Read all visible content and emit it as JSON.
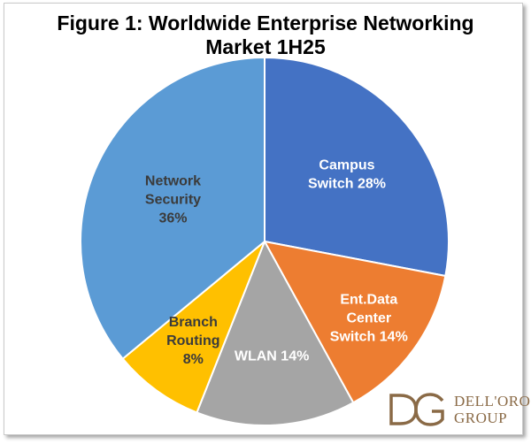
{
  "title_line1": "Figure 1: Worldwide Enterprise Networking",
  "title_line2": "Market 1H25",
  "chart_data": {
    "type": "pie",
    "title": "Figure 1: Worldwide Enterprise Networking Market 1H25",
    "start_angle_deg": 0,
    "direction": "clockwise",
    "legend": "none",
    "slices": [
      {
        "label": "Campus Switch",
        "value": 28,
        "display": [
          "Campus",
          "Switch 28%"
        ],
        "color": "#4472c4",
        "text_color": "#ffffff"
      },
      {
        "label": "Ent.Data Center Switch",
        "value": 14,
        "display": [
          "Ent.Data",
          "Center",
          "Switch 14%"
        ],
        "color": "#ed7d31",
        "text_color": "#ffffff"
      },
      {
        "label": "WLAN",
        "value": 14,
        "display": [
          "WLAN 14%"
        ],
        "color": "#a5a5a5",
        "text_color": "#ffffff"
      },
      {
        "label": "Branch Routing",
        "value": 8,
        "display": [
          "Branch",
          "Routing",
          "8%"
        ],
        "color": "#ffc000",
        "text_color": "#3b3b3b"
      },
      {
        "label": "Network Security",
        "value": 36,
        "display": [
          "Network",
          "Security",
          "36%"
        ],
        "color": "#5b9bd5",
        "text_color": "#3b3b3b"
      }
    ]
  },
  "logo": {
    "mark": "DG",
    "line1": "DELL'ORO",
    "line2": "GROUP",
    "color": "#8a6a46"
  }
}
